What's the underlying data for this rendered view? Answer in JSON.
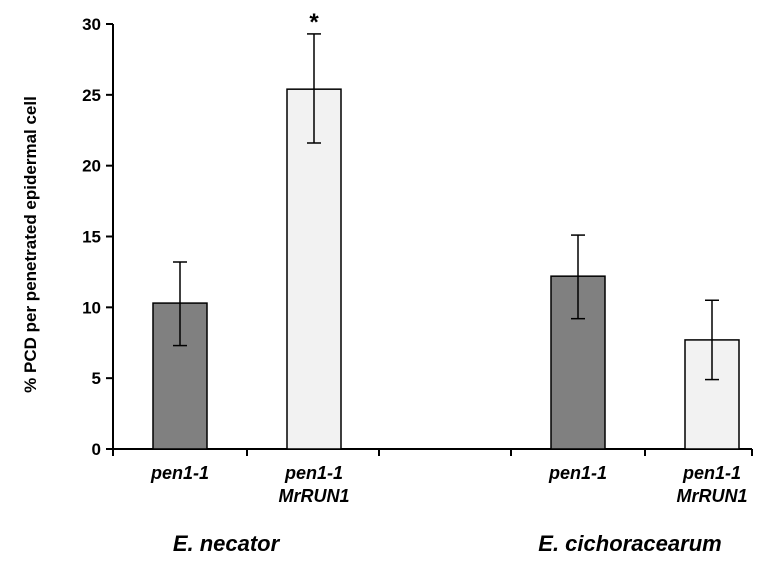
{
  "chart_data": {
    "type": "bar",
    "ylabel": "% PCD per penetrated epidermal cell",
    "ylim": [
      0,
      30
    ],
    "yticks": [
      0,
      5,
      10,
      15,
      20,
      25,
      30
    ],
    "grid": false,
    "groups": [
      {
        "label": "E. necator",
        "bars": [
          {
            "label_lines": [
              "pen1-1"
            ],
            "value": 10.3,
            "err_low": 7.3,
            "err_high": 13.2,
            "color": "#808080",
            "annotation": ""
          },
          {
            "label_lines": [
              "pen1-1",
              "MrRUN1"
            ],
            "value": 25.4,
            "err_low": 21.6,
            "err_high": 29.3,
            "color": "#f2f2f2",
            "annotation": "*"
          }
        ]
      },
      {
        "label": "E. cichoracearum",
        "bars": [
          {
            "label_lines": [
              "pen1-1"
            ],
            "value": 12.2,
            "err_low": 9.2,
            "err_high": 15.1,
            "color": "#808080",
            "annotation": ""
          },
          {
            "label_lines": [
              "pen1-1",
              "MrRUN1"
            ],
            "value": 7.7,
            "err_low": 4.9,
            "err_high": 10.5,
            "color": "#f2f2f2",
            "annotation": ""
          }
        ]
      }
    ]
  }
}
